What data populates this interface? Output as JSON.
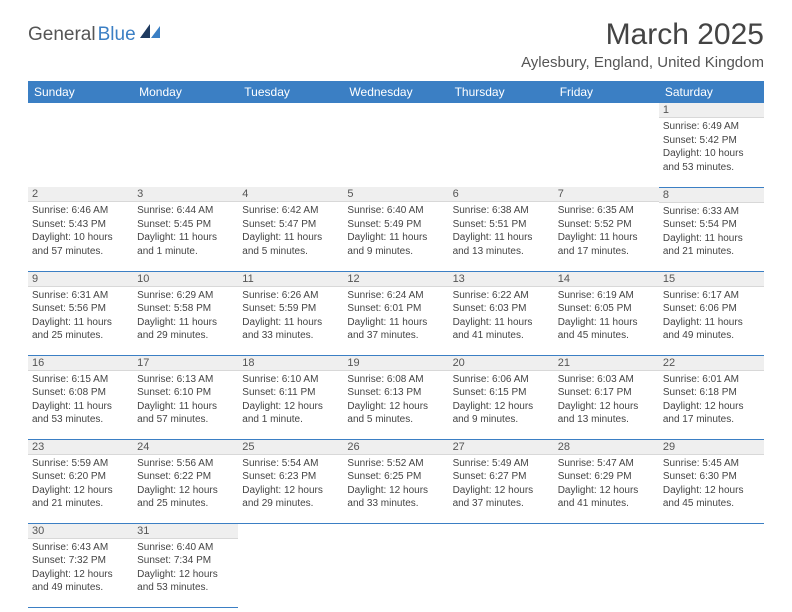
{
  "logo": {
    "text1": "General",
    "text2": "Blue"
  },
  "title": "March 2025",
  "location": "Aylesbury, England, United Kingdom",
  "colors": {
    "header_bg": "#3b7fc4",
    "header_text": "#ffffff",
    "daynum_bg": "#efefef",
    "border": "#3b7fc4",
    "text": "#444444"
  },
  "weekdays": [
    "Sunday",
    "Monday",
    "Tuesday",
    "Wednesday",
    "Thursday",
    "Friday",
    "Saturday"
  ],
  "weeks": [
    [
      {
        "n": "",
        "sr": "",
        "ss": "",
        "dl": ""
      },
      {
        "n": "",
        "sr": "",
        "ss": "",
        "dl": ""
      },
      {
        "n": "",
        "sr": "",
        "ss": "",
        "dl": ""
      },
      {
        "n": "",
        "sr": "",
        "ss": "",
        "dl": ""
      },
      {
        "n": "",
        "sr": "",
        "ss": "",
        "dl": ""
      },
      {
        "n": "",
        "sr": "",
        "ss": "",
        "dl": ""
      },
      {
        "n": "1",
        "sr": "Sunrise: 6:49 AM",
        "ss": "Sunset: 5:42 PM",
        "dl": "Daylight: 10 hours and 53 minutes."
      }
    ],
    [
      {
        "n": "2",
        "sr": "Sunrise: 6:46 AM",
        "ss": "Sunset: 5:43 PM",
        "dl": "Daylight: 10 hours and 57 minutes."
      },
      {
        "n": "3",
        "sr": "Sunrise: 6:44 AM",
        "ss": "Sunset: 5:45 PM",
        "dl": "Daylight: 11 hours and 1 minute."
      },
      {
        "n": "4",
        "sr": "Sunrise: 6:42 AM",
        "ss": "Sunset: 5:47 PM",
        "dl": "Daylight: 11 hours and 5 minutes."
      },
      {
        "n": "5",
        "sr": "Sunrise: 6:40 AM",
        "ss": "Sunset: 5:49 PM",
        "dl": "Daylight: 11 hours and 9 minutes."
      },
      {
        "n": "6",
        "sr": "Sunrise: 6:38 AM",
        "ss": "Sunset: 5:51 PM",
        "dl": "Daylight: 11 hours and 13 minutes."
      },
      {
        "n": "7",
        "sr": "Sunrise: 6:35 AM",
        "ss": "Sunset: 5:52 PM",
        "dl": "Daylight: 11 hours and 17 minutes."
      },
      {
        "n": "8",
        "sr": "Sunrise: 6:33 AM",
        "ss": "Sunset: 5:54 PM",
        "dl": "Daylight: 11 hours and 21 minutes."
      }
    ],
    [
      {
        "n": "9",
        "sr": "Sunrise: 6:31 AM",
        "ss": "Sunset: 5:56 PM",
        "dl": "Daylight: 11 hours and 25 minutes."
      },
      {
        "n": "10",
        "sr": "Sunrise: 6:29 AM",
        "ss": "Sunset: 5:58 PM",
        "dl": "Daylight: 11 hours and 29 minutes."
      },
      {
        "n": "11",
        "sr": "Sunrise: 6:26 AM",
        "ss": "Sunset: 5:59 PM",
        "dl": "Daylight: 11 hours and 33 minutes."
      },
      {
        "n": "12",
        "sr": "Sunrise: 6:24 AM",
        "ss": "Sunset: 6:01 PM",
        "dl": "Daylight: 11 hours and 37 minutes."
      },
      {
        "n": "13",
        "sr": "Sunrise: 6:22 AM",
        "ss": "Sunset: 6:03 PM",
        "dl": "Daylight: 11 hours and 41 minutes."
      },
      {
        "n": "14",
        "sr": "Sunrise: 6:19 AM",
        "ss": "Sunset: 6:05 PM",
        "dl": "Daylight: 11 hours and 45 minutes."
      },
      {
        "n": "15",
        "sr": "Sunrise: 6:17 AM",
        "ss": "Sunset: 6:06 PM",
        "dl": "Daylight: 11 hours and 49 minutes."
      }
    ],
    [
      {
        "n": "16",
        "sr": "Sunrise: 6:15 AM",
        "ss": "Sunset: 6:08 PM",
        "dl": "Daylight: 11 hours and 53 minutes."
      },
      {
        "n": "17",
        "sr": "Sunrise: 6:13 AM",
        "ss": "Sunset: 6:10 PM",
        "dl": "Daylight: 11 hours and 57 minutes."
      },
      {
        "n": "18",
        "sr": "Sunrise: 6:10 AM",
        "ss": "Sunset: 6:11 PM",
        "dl": "Daylight: 12 hours and 1 minute."
      },
      {
        "n": "19",
        "sr": "Sunrise: 6:08 AM",
        "ss": "Sunset: 6:13 PM",
        "dl": "Daylight: 12 hours and 5 minutes."
      },
      {
        "n": "20",
        "sr": "Sunrise: 6:06 AM",
        "ss": "Sunset: 6:15 PM",
        "dl": "Daylight: 12 hours and 9 minutes."
      },
      {
        "n": "21",
        "sr": "Sunrise: 6:03 AM",
        "ss": "Sunset: 6:17 PM",
        "dl": "Daylight: 12 hours and 13 minutes."
      },
      {
        "n": "22",
        "sr": "Sunrise: 6:01 AM",
        "ss": "Sunset: 6:18 PM",
        "dl": "Daylight: 12 hours and 17 minutes."
      }
    ],
    [
      {
        "n": "23",
        "sr": "Sunrise: 5:59 AM",
        "ss": "Sunset: 6:20 PM",
        "dl": "Daylight: 12 hours and 21 minutes."
      },
      {
        "n": "24",
        "sr": "Sunrise: 5:56 AM",
        "ss": "Sunset: 6:22 PM",
        "dl": "Daylight: 12 hours and 25 minutes."
      },
      {
        "n": "25",
        "sr": "Sunrise: 5:54 AM",
        "ss": "Sunset: 6:23 PM",
        "dl": "Daylight: 12 hours and 29 minutes."
      },
      {
        "n": "26",
        "sr": "Sunrise: 5:52 AM",
        "ss": "Sunset: 6:25 PM",
        "dl": "Daylight: 12 hours and 33 minutes."
      },
      {
        "n": "27",
        "sr": "Sunrise: 5:49 AM",
        "ss": "Sunset: 6:27 PM",
        "dl": "Daylight: 12 hours and 37 minutes."
      },
      {
        "n": "28",
        "sr": "Sunrise: 5:47 AM",
        "ss": "Sunset: 6:29 PM",
        "dl": "Daylight: 12 hours and 41 minutes."
      },
      {
        "n": "29",
        "sr": "Sunrise: 5:45 AM",
        "ss": "Sunset: 6:30 PM",
        "dl": "Daylight: 12 hours and 45 minutes."
      }
    ],
    [
      {
        "n": "30",
        "sr": "Sunrise: 6:43 AM",
        "ss": "Sunset: 7:32 PM",
        "dl": "Daylight: 12 hours and 49 minutes."
      },
      {
        "n": "31",
        "sr": "Sunrise: 6:40 AM",
        "ss": "Sunset: 7:34 PM",
        "dl": "Daylight: 12 hours and 53 minutes."
      },
      {
        "n": "",
        "sr": "",
        "ss": "",
        "dl": ""
      },
      {
        "n": "",
        "sr": "",
        "ss": "",
        "dl": ""
      },
      {
        "n": "",
        "sr": "",
        "ss": "",
        "dl": ""
      },
      {
        "n": "",
        "sr": "",
        "ss": "",
        "dl": ""
      },
      {
        "n": "",
        "sr": "",
        "ss": "",
        "dl": ""
      }
    ]
  ]
}
